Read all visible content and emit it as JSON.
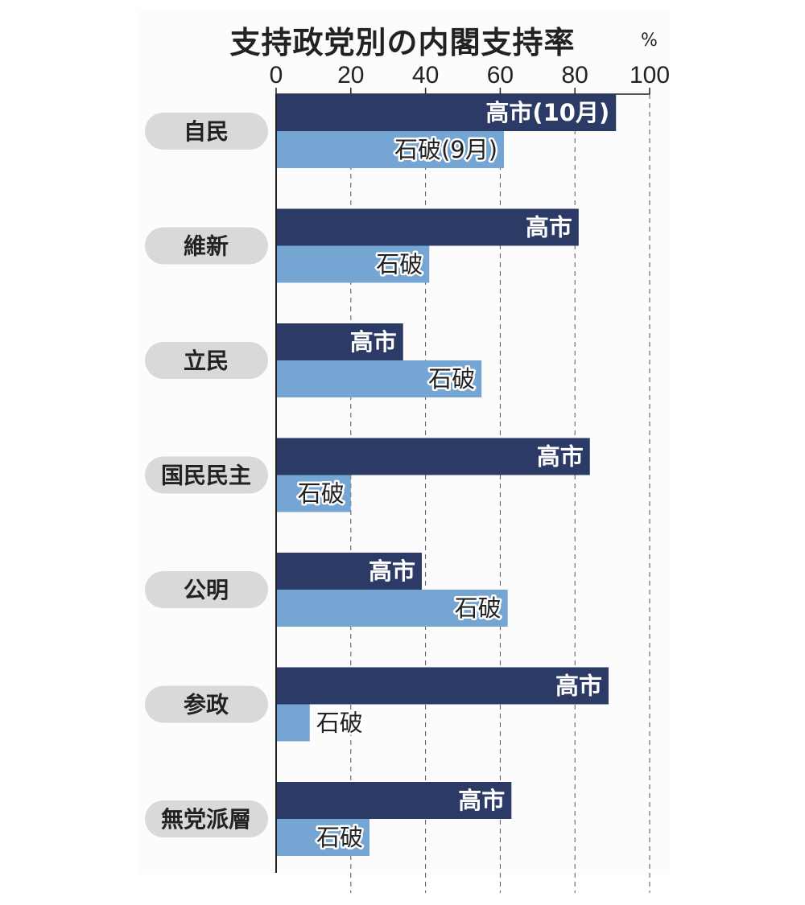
{
  "chart_data": {
    "type": "bar",
    "orientation": "horizontal",
    "title": "支持政党別の内閣支持率",
    "unit": "%",
    "xlim": [
      0,
      100
    ],
    "xticks": [
      0,
      20,
      40,
      60,
      80,
      100
    ],
    "grid": "dashed vertical",
    "categories": [
      "自民",
      "維新",
      "立民",
      "国民民主",
      "公明",
      "参政",
      "無党派層"
    ],
    "series": [
      {
        "name": "高市",
        "first_label": "高市(10月)",
        "color": "#2c3a66",
        "values": [
          91,
          81,
          34,
          84,
          39,
          89,
          63
        ]
      },
      {
        "name": "石破",
        "first_label": "石破(9月)",
        "color": "#74a5d3",
        "values": [
          61,
          41,
          55,
          20,
          62,
          9,
          25
        ]
      }
    ]
  }
}
